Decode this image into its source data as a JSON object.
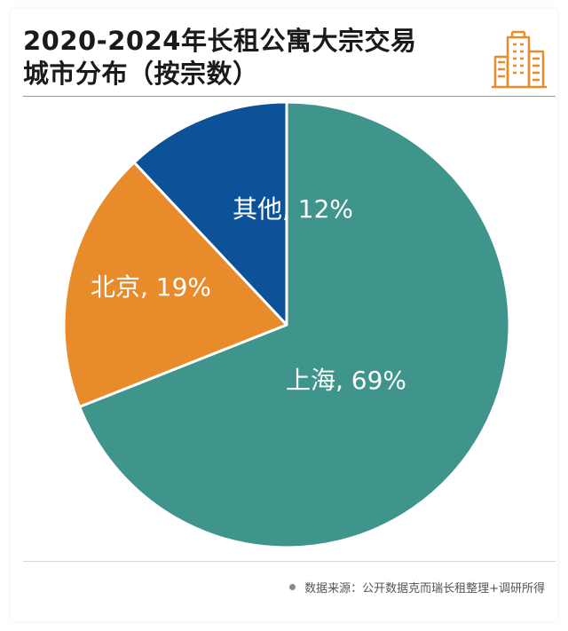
{
  "title_line1": "2020-2024年长租公寓大宗交易",
  "title_line2": "城市分布（按宗数）",
  "source": "数据来源：公开数据克而瑞长租整理+调研所得",
  "colors": {
    "shanghai": "#3f958b",
    "beijing": "#e88b2a",
    "other": "#0d5198",
    "accent": "#e88b2a"
  },
  "logo_icon": "buildings-icon",
  "chart_data": {
    "type": "pie",
    "title": "2020-2024年长租公寓大宗交易城市分布（按宗数）",
    "slices": [
      {
        "name": "上海",
        "value": 69,
        "label": "上海, 69%",
        "color": "#3f958b"
      },
      {
        "name": "北京",
        "value": 19,
        "label": "北京, 19%",
        "color": "#e88b2a"
      },
      {
        "name": "其他",
        "value": 12,
        "label": "其他, 12%",
        "color": "#0d5198"
      }
    ]
  }
}
